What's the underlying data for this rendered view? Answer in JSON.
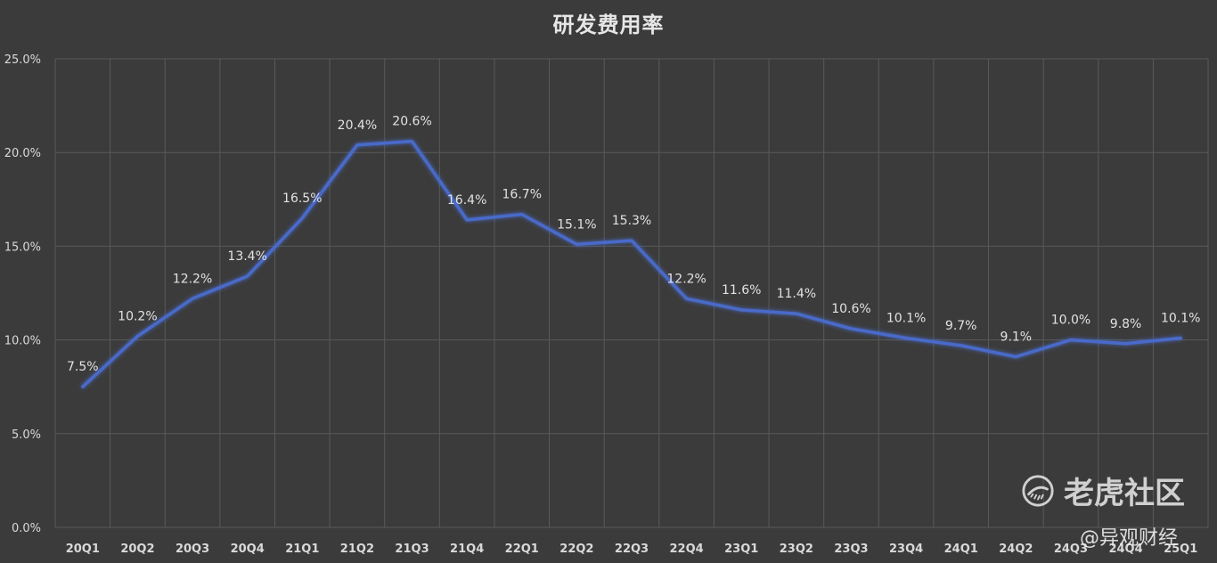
{
  "chart_data": {
    "type": "line",
    "title": "研发费用率",
    "xlabel": "",
    "ylabel": "",
    "categories": [
      "20Q1",
      "20Q2",
      "20Q3",
      "20Q4",
      "21Q1",
      "21Q2",
      "21Q3",
      "21Q4",
      "22Q1",
      "22Q2",
      "22Q3",
      "22Q4",
      "23Q1",
      "23Q2",
      "23Q3",
      "23Q4",
      "24Q1",
      "24Q2",
      "24Q3",
      "24Q4",
      "25Q1"
    ],
    "series": [
      {
        "values": [
          7.5,
          10.2,
          12.2,
          13.4,
          16.5,
          20.4,
          20.6,
          16.4,
          16.7,
          15.1,
          15.3,
          12.2,
          11.6,
          11.4,
          10.6,
          10.1,
          9.7,
          9.1,
          10.0,
          9.8,
          10.1
        ],
        "labels": [
          "7.5%",
          "10.2%",
          "12.2%",
          "13.4%",
          "16.5%",
          "20.4%",
          "20.6%",
          "16.4%",
          "16.7%",
          "15.1%",
          "15.3%",
          "12.2%",
          "11.6%",
          "11.4%",
          "10.6%",
          "10.1%",
          "9.7%",
          "9.1%",
          "10.0%",
          "9.8%",
          "10.1%"
        ],
        "color": "#4a6bc9"
      }
    ],
    "ylim": [
      0,
      25
    ],
    "yticks": [
      0,
      5,
      10,
      15,
      20,
      25
    ],
    "ytick_labels": [
      "0.0%",
      "5.0%",
      "10.0%",
      "15.0%",
      "20.0%",
      "25.0%"
    ],
    "grid": true,
    "legend": "none"
  },
  "watermark": {
    "main_text": "老虎社区",
    "credit_text": "@异观财经"
  },
  "colors": {
    "background": "#3b3b3b",
    "grid": "#5a5a5a",
    "line": "#4a6bc9"
  }
}
